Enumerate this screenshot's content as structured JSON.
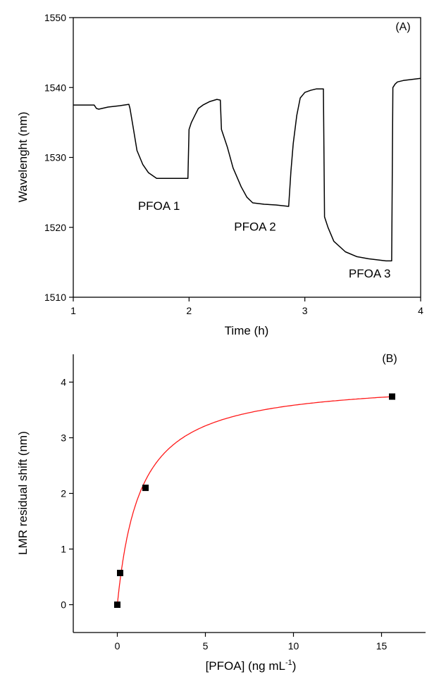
{
  "chart_data": [
    {
      "type": "line",
      "panel_label": "(A)",
      "xlabel": "Time (h)",
      "ylabel": "Wavelenght (nm)",
      "xlim": [
        1,
        4
      ],
      "ylim": [
        1510,
        1550
      ],
      "xticks": [
        1,
        2,
        3,
        4
      ],
      "yticks": [
        1510,
        1520,
        1530,
        1540,
        1550
      ],
      "grid": false,
      "series": [
        {
          "color": "#000000",
          "x": [
            1.0,
            1.1,
            1.18,
            1.2,
            1.22,
            1.3,
            1.4,
            1.48,
            1.49,
            1.52,
            1.55,
            1.6,
            1.65,
            1.72,
            1.8,
            1.9,
            1.99,
            2.0,
            2.02,
            2.05,
            2.08,
            2.12,
            2.18,
            2.24,
            2.27,
            2.28,
            2.33,
            2.38,
            2.45,
            2.5,
            2.55,
            2.65,
            2.75,
            2.86,
            2.88,
            2.9,
            2.93,
            2.96,
            3.0,
            3.05,
            3.1,
            3.16,
            3.17,
            3.2,
            3.25,
            3.35,
            3.45,
            3.55,
            3.65,
            3.7,
            3.75,
            3.76,
            3.78,
            3.8,
            3.85,
            3.9,
            3.95,
            4.0
          ],
          "y": [
            1537.5,
            1537.5,
            1537.5,
            1537.0,
            1536.9,
            1537.2,
            1537.4,
            1537.6,
            1537.0,
            1534.0,
            1531.0,
            1529.0,
            1527.8,
            1527.0,
            1527.0,
            1527.0,
            1527.0,
            1534.0,
            1535.0,
            1536.0,
            1537.0,
            1537.5,
            1538.0,
            1538.3,
            1538.2,
            1534.0,
            1531.5,
            1528.5,
            1525.8,
            1524.3,
            1523.5,
            1523.3,
            1523.2,
            1523.0,
            1528.0,
            1532.0,
            1536.0,
            1538.5,
            1539.3,
            1539.6,
            1539.8,
            1539.8,
            1521.5,
            1520.0,
            1518.0,
            1516.5,
            1515.8,
            1515.5,
            1515.3,
            1515.2,
            1515.2,
            1540.0,
            1540.5,
            1540.8,
            1541.0,
            1541.1,
            1541.2,
            1541.3
          ]
        }
      ],
      "annotations": [
        {
          "text": "PFOA 1",
          "x": 1.74,
          "y": 1522.5
        },
        {
          "text": "PFOA 2",
          "x": 2.57,
          "y": 1519.5
        },
        {
          "text": "PFOA 3",
          "x": 3.56,
          "y": 1512.8
        }
      ]
    },
    {
      "type": "scatter",
      "panel_label": "(B)",
      "xlabel": "[PFOA] (ng mL",
      "xlabel_sup": "-1",
      "xlabel_end": ")",
      "ylabel": "LMR residual shift (nm)",
      "xlim": [
        -2.5,
        17.5
      ],
      "ylim": [
        -0.5,
        4.5
      ],
      "xticks": [
        0,
        5,
        10,
        15
      ],
      "yticks": [
        0,
        1,
        2,
        3,
        4
      ],
      "grid": false,
      "points": {
        "color": "#000000",
        "x": [
          0,
          0.16,
          1.6,
          15.6
        ],
        "y": [
          0,
          0.57,
          2.1,
          3.74
        ]
      },
      "fit": {
        "color": "#ff1a1a",
        "model": "langmuir",
        "vmax": 4.05,
        "k": 1.3,
        "x_range": [
          0,
          15.6
        ]
      }
    }
  ]
}
